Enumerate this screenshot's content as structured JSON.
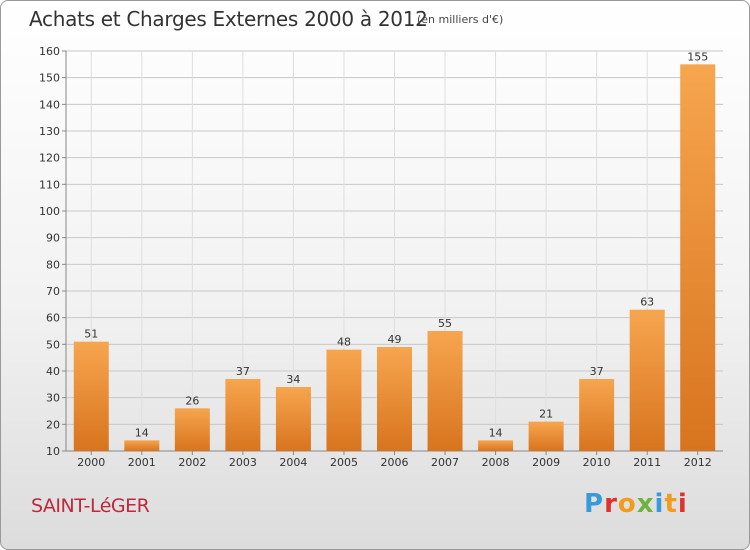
{
  "title": "Achats et Charges Externes 2000 à 2012",
  "subtitle": "(en milliers d'€)",
  "town": "SAINT-LéGER",
  "logo": {
    "letters": [
      "P",
      "r",
      "o",
      "x",
      "i",
      "t",
      "i"
    ],
    "colors": [
      "#3a9ad9",
      "#e0322d",
      "#f29b1d",
      "#6cb33f",
      "#3a9ad9",
      "#f29b1d",
      "#e0322d"
    ]
  },
  "colors": {
    "bar_light": "#f7a54f",
    "bar_dark": "#d8741e",
    "town": "#c0283c"
  },
  "chart_data": {
    "type": "bar",
    "categories": [
      "2000",
      "2001",
      "2002",
      "2003",
      "2004",
      "2005",
      "2006",
      "2007",
      "2008",
      "2009",
      "2010",
      "2011",
      "2012"
    ],
    "values": [
      51,
      14,
      26,
      37,
      34,
      48,
      49,
      55,
      14,
      21,
      37,
      63,
      155
    ],
    "ylim": [
      10,
      160
    ],
    "yticks": [
      10,
      20,
      30,
      40,
      50,
      60,
      70,
      80,
      90,
      100,
      110,
      120,
      130,
      140,
      150,
      160
    ],
    "grid": true,
    "data_labels": true
  }
}
